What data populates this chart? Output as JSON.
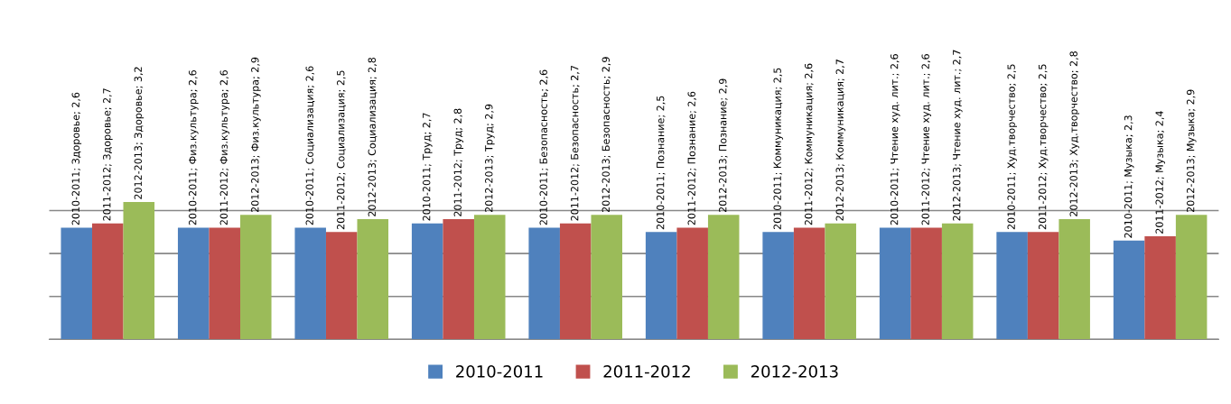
{
  "chart_data": {
    "type": "bar",
    "categories": [
      null,
      null,
      null,
      null,
      null,
      null,
      null,
      null,
      null,
      null
    ],
    "yticks": [
      {
        "value": 0,
        "label": null
      },
      {
        "value": 1,
        "label": null
      },
      {
        "value": 2,
        "label": null
      },
      {
        "value": 3,
        "label": null
      }
    ],
    "ylim": [
      0,
      3.2
    ],
    "grid": "y",
    "legend": "bottom",
    "series": [
      {
        "name": "2010-2011",
        "color": "#4f81bd",
        "values": [
          2.6,
          2.6,
          2.6,
          2.7,
          2.6,
          2.5,
          2.5,
          2.6,
          2.5,
          2.3
        ],
        "value_labels": [
          "2010-2011; Здоровье; 2,6",
          "2010-2011; Физ.культура; 2,6",
          "2010-2011; Социализация; 2,6",
          "2010-2011; Труд; 2,7",
          "2010-2011; Безопасность; 2,6",
          "2010-2011; Познание; 2,5",
          "2010-2011; Коммуникация; 2,5",
          "2010-2011; Чтение худ. лит.; 2,6",
          "2010-2011; Худ.творчество; 2,5",
          "2010-2011; Музыка; 2,3"
        ]
      },
      {
        "name": "2011-2012",
        "color": "#c0504d",
        "values": [
          2.7,
          2.6,
          2.5,
          2.8,
          2.7,
          2.6,
          2.6,
          2.6,
          2.5,
          2.4
        ],
        "value_labels": [
          "2011-2012; Здоровье; 2,7",
          "2011-2012; Физ.культура; 2,6",
          "2011-2012; Социализация; 2,5",
          "2011-2012; Труд; 2,8",
          "2011-2012; Безопасность; 2,7",
          "2011-2012; Познание; 2,6",
          "2011-2012; Коммуникация; 2,6",
          "2011-2012; Чтение худ. лит.; 2,6",
          "2011-2012; Худ.творчество; 2,5",
          "2011-2012; Музыка; 2,4"
        ]
      },
      {
        "name": "2012-2013",
        "color": "#9bbb59",
        "values": [
          3.2,
          2.9,
          2.8,
          2.9,
          2.9,
          2.9,
          2.7,
          2.7,
          2.8,
          2.9
        ],
        "value_labels": [
          "2012-2013; Здоровье; 3,2",
          "2012-2013; Физ.культура; 2,9",
          "2012-2013; Социализация; 2,8",
          "2012-2013; Труд; 2,9",
          "2012-2013; Безопасность; 2,9",
          "2012-2013; Познание; 2,9",
          "2012-2013; Коммуникация; 2,7",
          "2012-2013; Чтение худ. лит.; 2,7",
          "2012-2013; Худ.творчество; 2,8",
          "2012-2013; Музыка; 2,9"
        ]
      }
    ]
  }
}
